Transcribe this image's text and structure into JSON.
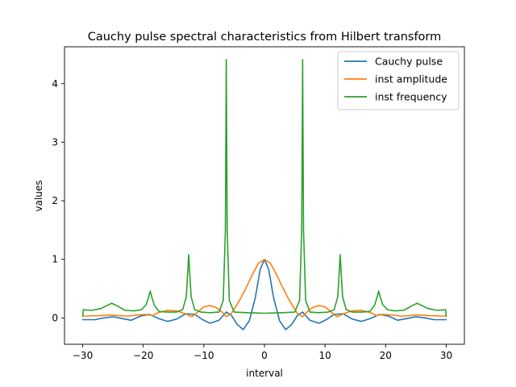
{
  "chart_data": {
    "type": "line",
    "title": "Cauchy pulse spectral characteristics from Hilbert transform",
    "xlabel": "interval",
    "ylabel": "values",
    "xlim": [
      -33,
      33
    ],
    "ylim": [
      -0.45,
      4.63
    ],
    "xticks": [
      -30,
      -20,
      -10,
      0,
      10,
      20,
      30
    ],
    "yticks": [
      0,
      1,
      2,
      3,
      4
    ],
    "legend_position": "top-right",
    "series": [
      {
        "name": "Cauchy pulse",
        "color": "#1f77b4",
        "x": [
          -30,
          -28,
          -26.5,
          -25,
          -23.5,
          -22,
          -20.5,
          -19,
          -17.5,
          -16,
          -14.5,
          -13,
          -11.5,
          -10.2,
          -9,
          -7.5,
          -6.3,
          -5.5,
          -4.5,
          -3.5,
          -2.5,
          -1.5,
          -0.7,
          0,
          0.7,
          1.5,
          2.5,
          3.5,
          4.5,
          5.5,
          6.3,
          7.5,
          9,
          10.2,
          11.5,
          13,
          14.5,
          16,
          17.5,
          19,
          20.5,
          22,
          23.5,
          25,
          26.5,
          28,
          30
        ],
        "y": [
          -0.03,
          -0.03,
          0.0,
          0.02,
          -0.01,
          -0.04,
          0.03,
          0.06,
          -0.01,
          -0.06,
          -0.02,
          0.07,
          0.06,
          -0.03,
          -0.09,
          -0.04,
          0.1,
          0.05,
          -0.11,
          -0.2,
          -0.05,
          0.35,
          0.83,
          1.0,
          0.83,
          0.35,
          -0.05,
          -0.2,
          -0.11,
          0.05,
          0.1,
          -0.04,
          -0.09,
          -0.03,
          0.06,
          0.07,
          -0.02,
          -0.06,
          -0.01,
          0.06,
          0.03,
          -0.04,
          -0.01,
          0.02,
          0.0,
          -0.03,
          -0.03
        ]
      },
      {
        "name": "inst amplitude",
        "color": "#ff7f0e",
        "x": [
          -30,
          -27,
          -25.5,
          -24,
          -22.5,
          -21,
          -19.5,
          -18.5,
          -17.5,
          -16,
          -14.5,
          -13,
          -12,
          -11,
          -10,
          -9,
          -8,
          -7,
          -6.3,
          -5.5,
          -5,
          -4,
          -3,
          -2,
          -1,
          0,
          1,
          2,
          3,
          4,
          5,
          5.5,
          6.3,
          7,
          8,
          9,
          10,
          11,
          12,
          13,
          14.5,
          16,
          17.5,
          18.5,
          19.5,
          21,
          22.5,
          24,
          25.5,
          27,
          30
        ],
        "y": [
          0.03,
          0.04,
          0.05,
          0.04,
          0.03,
          0.05,
          0.06,
          0.04,
          0.09,
          0.13,
          0.12,
          0.07,
          0.02,
          0.1,
          0.19,
          0.21,
          0.18,
          0.1,
          0.02,
          0.07,
          0.15,
          0.32,
          0.52,
          0.74,
          0.93,
          1.0,
          0.93,
          0.74,
          0.52,
          0.32,
          0.15,
          0.07,
          0.02,
          0.1,
          0.18,
          0.21,
          0.19,
          0.1,
          0.02,
          0.07,
          0.12,
          0.13,
          0.09,
          0.04,
          0.06,
          0.05,
          0.03,
          0.04,
          0.05,
          0.04,
          0.03
        ]
      },
      {
        "name": "inst frequency",
        "color": "#2ca02c",
        "x": [
          -30,
          -29.9,
          -28.5,
          -27,
          -26,
          -25.2,
          -24.2,
          -23,
          -21.5,
          -20.3,
          -19.5,
          -19.1,
          -18.85,
          -18.6,
          -18.2,
          -17.4,
          -16,
          -14.5,
          -13.5,
          -12.9,
          -12.65,
          -12.5,
          -12.35,
          -12.1,
          -11.5,
          -10.5,
          -9,
          -7.5,
          -6.8,
          -6.45,
          -6.3,
          -6.15,
          -5.8,
          -5,
          -3,
          0,
          3,
          5,
          5.8,
          6.15,
          6.3,
          6.45,
          6.8,
          7.5,
          9,
          10.5,
          11.5,
          12.1,
          12.35,
          12.5,
          12.65,
          12.9,
          13.5,
          14.5,
          16,
          17.4,
          18.2,
          18.6,
          18.85,
          19.1,
          19.5,
          20.3,
          21.5,
          23,
          24.2,
          25.2,
          26,
          27,
          28.5,
          29.9,
          30
        ],
        "y": [
          0.03,
          0.14,
          0.13,
          0.16,
          0.21,
          0.25,
          0.2,
          0.13,
          0.12,
          0.14,
          0.23,
          0.36,
          0.46,
          0.36,
          0.22,
          0.11,
          0.1,
          0.1,
          0.14,
          0.36,
          0.8,
          1.08,
          0.8,
          0.36,
          0.14,
          0.1,
          0.09,
          0.1,
          0.3,
          1.5,
          4.41,
          1.5,
          0.3,
          0.1,
          0.09,
          0.08,
          0.09,
          0.1,
          0.3,
          1.5,
          4.41,
          1.5,
          0.3,
          0.1,
          0.09,
          0.1,
          0.14,
          0.36,
          0.8,
          1.08,
          0.8,
          0.36,
          0.14,
          0.1,
          0.1,
          0.11,
          0.22,
          0.36,
          0.46,
          0.36,
          0.23,
          0.14,
          0.12,
          0.13,
          0.2,
          0.25,
          0.21,
          0.16,
          0.13,
          0.14,
          0.03
        ]
      }
    ]
  }
}
